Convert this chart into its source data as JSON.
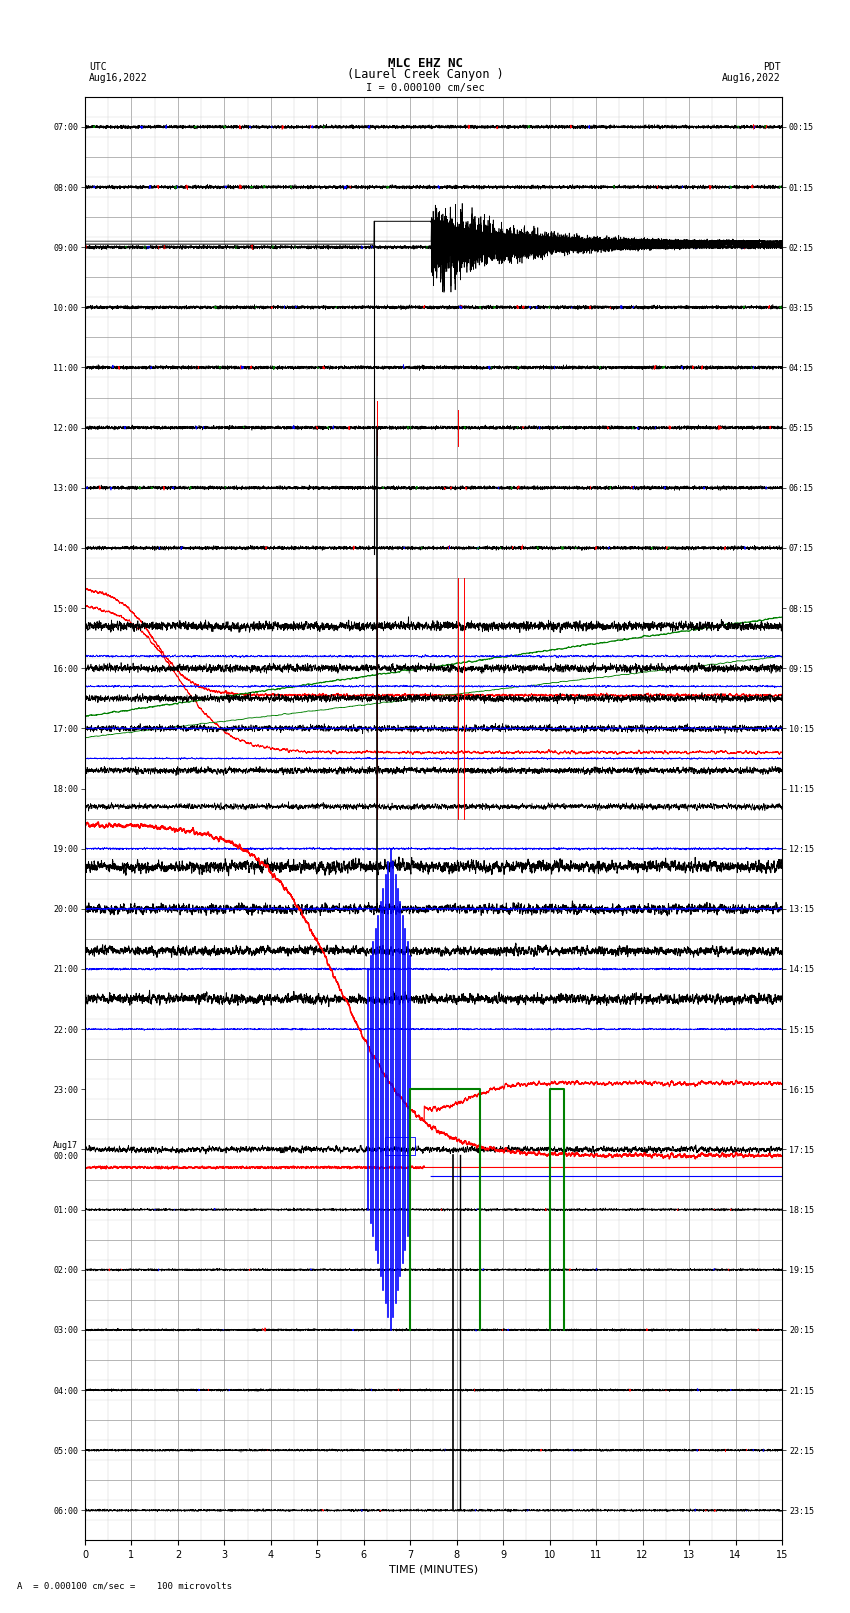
{
  "title_line1": "MLC EHZ NC",
  "title_line2": "(Laurel Creek Canyon )",
  "title_line3": "I = 0.000100 cm/sec",
  "left_label_top": "UTC",
  "left_label_date": "Aug16,2022",
  "right_label_top": "PDT",
  "right_label_date": "Aug16,2022",
  "xlabel": "TIME (MINUTES)",
  "footer": "A  = 0.000100 cm/sec =    100 microvolts",
  "xlim": [
    0,
    15
  ],
  "utc_times": [
    "07:00",
    "08:00",
    "09:00",
    "10:00",
    "11:00",
    "12:00",
    "13:00",
    "14:00",
    "15:00",
    "16:00",
    "17:00",
    "18:00",
    "19:00",
    "20:00",
    "21:00",
    "22:00",
    "23:00",
    "Aug17\n00:00",
    "01:00",
    "02:00",
    "03:00",
    "04:00",
    "05:00",
    "06:00"
  ],
  "pdt_times": [
    "00:15",
    "01:15",
    "02:15",
    "03:15",
    "04:15",
    "05:15",
    "06:15",
    "07:15",
    "08:15",
    "09:15",
    "10:15",
    "11:15",
    "12:15",
    "13:15",
    "14:15",
    "15:15",
    "16:15",
    "17:15",
    "18:15",
    "19:15",
    "20:15",
    "21:15",
    "22:15",
    "23:15"
  ],
  "bg_color": "#ffffff",
  "grid_color": "#aaaaaa",
  "n_rows": 24
}
